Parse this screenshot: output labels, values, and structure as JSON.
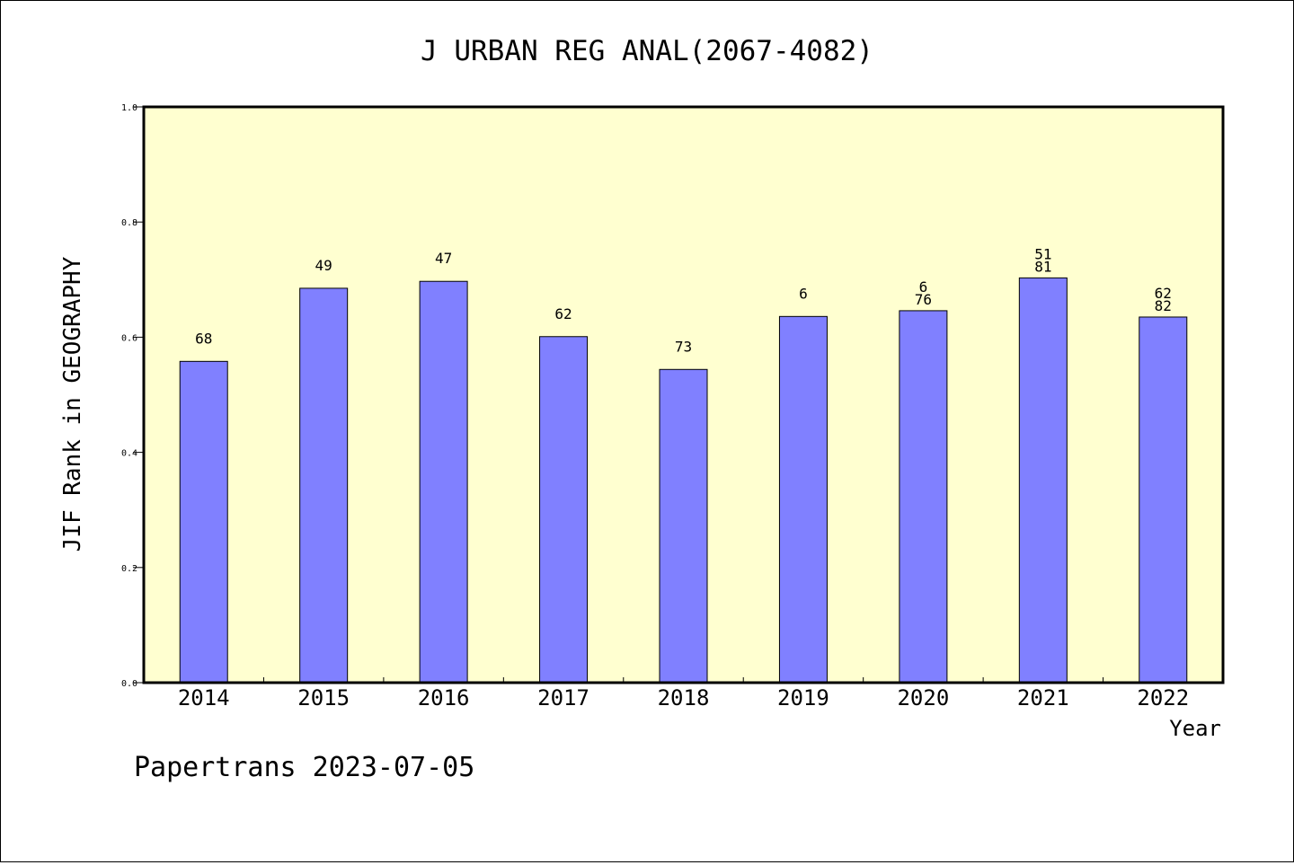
{
  "chart_data": {
    "type": "bar",
    "title": "J URBAN REG ANAL(2067-4082)",
    "xlabel": "Year",
    "ylabel": "JIF Rank in GEOGRAPHY",
    "ylim": [
      0,
      1.0
    ],
    "yticks": [
      "0.0",
      "0.2",
      "0.4",
      "0.6",
      "0.8",
      "1.0"
    ],
    "grid": false,
    "categories": [
      "2014",
      "2015",
      "2016",
      "2017",
      "2018",
      "2019",
      "2020",
      "2021",
      "2022"
    ],
    "values": [
      0.558,
      0.685,
      0.697,
      0.601,
      0.544,
      0.636,
      0.646,
      0.703,
      0.635
    ],
    "annotations": [
      [
        "68"
      ],
      [
        "49"
      ],
      [
        "47"
      ],
      [
        "62"
      ],
      [
        "73"
      ],
      [
        "6"
      ],
      [
        "6",
        "76"
      ],
      [
        "51",
        "81"
      ],
      [
        "62",
        "82"
      ]
    ],
    "colors": {
      "bar": "#8080ff",
      "plot_background": "#ffffd0",
      "axis": "#000000"
    }
  },
  "footer": {
    "text": "Papertrans 2023-07-05"
  }
}
